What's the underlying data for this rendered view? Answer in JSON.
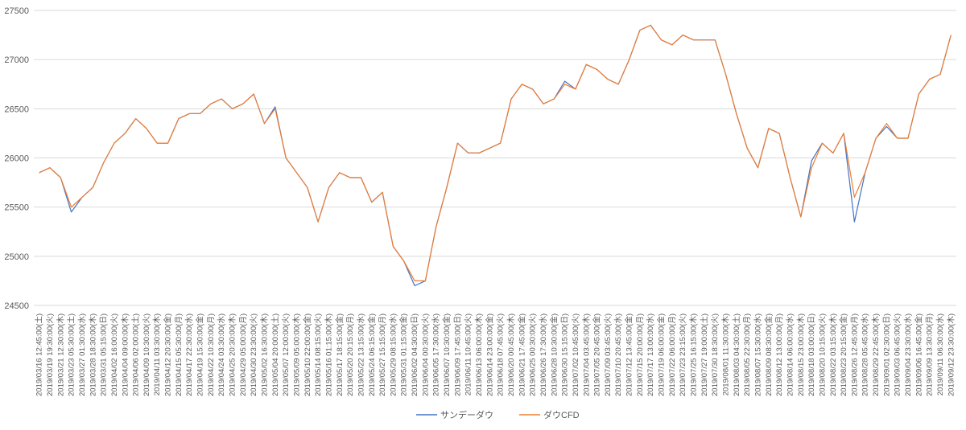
{
  "chart_data": {
    "type": "line",
    "categories": [
      "2019/03/16 12:45:00(土)",
      "2019/03/19 19:30:00(火)",
      "2019/03/21 12:30:00(木)",
      "2019/03/23 05:30:00(土)",
      "2019/03/27 01:30:00(水)",
      "2019/03/28 18:30:00(木)",
      "2019/03/31 05:15:00(日)",
      "2019/04/02 16:00:00(火)",
      "2019/04/04 09:00:00(木)",
      "2019/04/06 02:00:00(土)",
      "2019/04/09 10:30:00(火)",
      "2019/04/11 03:30:00(木)",
      "2019/04/12 20:30:00(金)",
      "2019/04/15 05:30:00(月)",
      "2019/04/17 22:30:00(水)",
      "2019/04/19 15:30:00(金)",
      "2019/04/22 10:30:00(月)",
      "2019/04/24 03:30:00(水)",
      "2019/04/25 20:30:00(木)",
      "2019/04/29 05:00:00(月)",
      "2019/04/30 23:30:00(火)",
      "2019/05/02 16:30:00(木)",
      "2019/05/04 20:00:00(土)",
      "2019/05/07 12:00:00(火)",
      "2019/05/09 05:00:00(木)",
      "2019/05/10 22:00:00(金)",
      "2019/05/14 08:15:00(火)",
      "2019/05/16 01:15:00(木)",
      "2019/05/17 18:15:00(金)",
      "2019/05/20 20:15:00(月)",
      "2019/05/22 13:15:00(水)",
      "2019/05/24 06:15:00(金)",
      "2019/05/27 15:15:00(月)",
      "2019/05/29 08:15:00(水)",
      "2019/05/31 01:15:00(金)",
      "2019/06/02 04:30:00(日)",
      "2019/06/04 00:30:00(火)",
      "2019/06/05 17:30:00(水)",
      "2019/06/07 10:30:00(金)",
      "2019/06/09 17:45:00(日)",
      "2019/06/11 10:45:00(火)",
      "2019/06/13 06:00:00(木)",
      "2019/06/14 23:00:00(金)",
      "2019/06/18 07:45:00(火)",
      "2019/06/20 00:45:00(木)",
      "2019/06/21 17:45:00(金)",
      "2019/06/25 00:30:00(火)",
      "2019/06/26 17:30:00(水)",
      "2019/06/28 10:30:00(金)",
      "2019/06/30 15:15:00(日)",
      "2019/07/02 10:45:00(火)",
      "2019/07/04 03:45:00(木)",
      "2019/07/05 20:45:00(金)",
      "2019/07/09 03:45:00(火)",
      "2019/07/10 20:45:00(水)",
      "2019/07/12 13:45:00(金)",
      "2019/07/15 20:00:00(月)",
      "2019/07/17 13:00:00(水)",
      "2019/07/19 06:00:00(金)",
      "2019/07/22 06:00:00(月)",
      "2019/07/23 23:15:00(火)",
      "2019/07/25 16:15:00(木)",
      "2019/07/27 19:00:00(土)",
      "2019/07/30 18:30:00(火)",
      "2019/08/01 11:30:00(木)",
      "2019/08/03 04:30:00(土)",
      "2019/08/05 22:30:00(月)",
      "2019/08/07 15:30:00(水)",
      "2019/08/09 08:30:00(金)",
      "2019/08/12 13:00:00(月)",
      "2019/08/14 06:00:00(水)",
      "2019/08/15 23:00:00(木)",
      "2019/08/18 03:00:00(日)",
      "2019/08/20 10:15:00(火)",
      "2019/08/22 03:15:00(木)",
      "2019/08/23 20:15:00(金)",
      "2019/08/26 12:45:00(月)",
      "2019/08/28 05:45:00(水)",
      "2019/08/29 22:45:00(木)",
      "2019/09/01 02:30:00(日)",
      "2019/09/03 06:45:00(火)",
      "2019/09/04 23:30:00(水)",
      "2019/09/06 16:45:00(金)",
      "2019/09/09 13:30:00(月)",
      "2019/09/11 06:30:00(水)",
      "2019/09/12 23:30:00(木)"
    ],
    "series": [
      {
        "name": "サンデーダウ",
        "color": "#4472c4",
        "values": [
          25850,
          25900,
          25800,
          25450,
          25600,
          25700,
          25950,
          26150,
          26250,
          26400,
          26300,
          26150,
          26150,
          26400,
          26450,
          26450,
          26550,
          26600,
          26500,
          26550,
          26650,
          26350,
          26520,
          26000,
          25850,
          25700,
          25350,
          25700,
          25850,
          25800,
          25800,
          25550,
          25650,
          25100,
          24950,
          24700,
          24750,
          25300,
          25700,
          26150,
          26050,
          26050,
          26100,
          26150,
          26600,
          26750,
          26700,
          26550,
          26600,
          26780,
          26700,
          26950,
          26900,
          26800,
          26750,
          27000,
          27300,
          27350,
          27200,
          27150,
          27250,
          27200,
          27200,
          27200,
          26850,
          26450,
          26100,
          25900,
          26300,
          26250,
          25800,
          25400,
          25970,
          26150,
          26050,
          26250,
          25350,
          25850,
          26200,
          26320,
          26200,
          26200,
          26650,
          26800,
          26850,
          27250
        ]
      },
      {
        "name": "ダウCFD",
        "color": "#ed7d31",
        "values": [
          25850,
          25900,
          25800,
          25500,
          25600,
          25700,
          25950,
          26150,
          26250,
          26400,
          26300,
          26150,
          26150,
          26400,
          26450,
          26450,
          26550,
          26600,
          26500,
          26550,
          26650,
          26350,
          26500,
          26000,
          25850,
          25700,
          25350,
          25700,
          25850,
          25800,
          25800,
          25550,
          25650,
          25100,
          24950,
          24750,
          24750,
          25300,
          25700,
          26150,
          26050,
          26050,
          26100,
          26150,
          26600,
          26750,
          26700,
          26550,
          26600,
          26750,
          26700,
          26950,
          26900,
          26800,
          26750,
          27000,
          27300,
          27350,
          27200,
          27150,
          27250,
          27200,
          27200,
          27200,
          26850,
          26450,
          26100,
          25900,
          26300,
          26250,
          25800,
          25400,
          25900,
          26150,
          26050,
          26250,
          25600,
          25850,
          26200,
          26350,
          26200,
          26200,
          26650,
          26800,
          26850,
          27250
        ]
      }
    ],
    "ylim": [
      24500,
      27500
    ],
    "yticks": [
      24500,
      25000,
      25500,
      26000,
      26500,
      27000,
      27500
    ],
    "grid": true,
    "legend": "bottom"
  }
}
